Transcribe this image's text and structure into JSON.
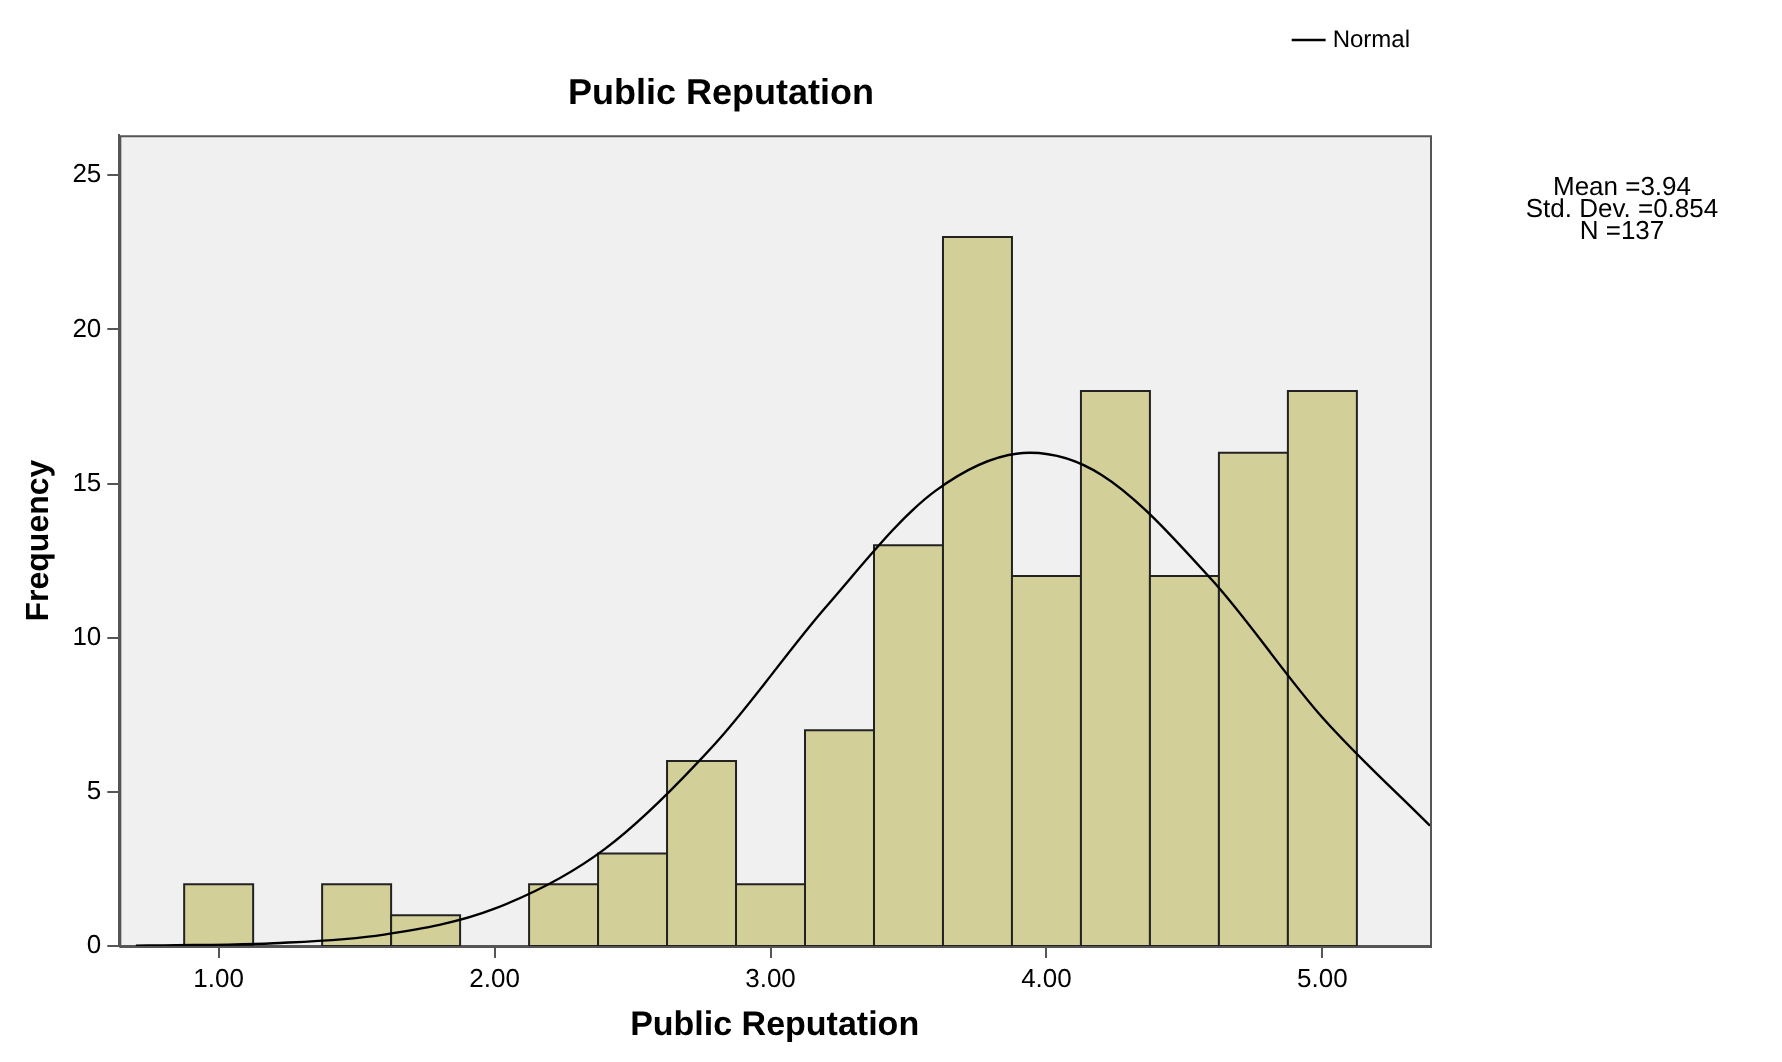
{
  "chart_data": {
    "type": "histogram",
    "title": "Public Reputation",
    "xlabel": "Public Reputation",
    "ylabel": "Frequency",
    "bins": [
      0.875,
      1.125,
      1.375,
      1.625,
      1.875,
      2.125,
      2.375,
      2.625,
      2.875,
      3.125,
      3.375,
      3.625,
      3.875,
      4.125,
      4.375,
      4.625,
      4.875,
      5.125
    ],
    "values": [
      2,
      0,
      2,
      1,
      0,
      2,
      3,
      6,
      2,
      7,
      13,
      23,
      12,
      18,
      12,
      16,
      18
    ],
    "color": "#d3cf98",
    "series": [
      {
        "name": "Normal",
        "type": "line",
        "color": "#000000",
        "x": [
          0.7,
          0.8,
          1.2,
          1.6,
          2.0,
          2.4,
          2.8,
          3.2,
          3.6,
          3.94,
          4.2,
          4.6,
          5.0,
          5.39
        ],
        "values": [
          0.01,
          0.02,
          0.09,
          0.37,
          1.21,
          3.15,
          6.57,
          10.99,
          14.78,
          16.0,
          15.28,
          11.87,
          7.41,
          3.9
        ]
      }
    ],
    "xlim": [
      0.64,
      5.39
    ],
    "xticks": [
      {
        "value": 1,
        "label": "1.00"
      },
      {
        "value": 2,
        "label": "2.00"
      },
      {
        "value": 3,
        "label": "3.00"
      },
      {
        "value": 4,
        "label": "4.00"
      },
      {
        "value": 5,
        "label": "5.00"
      }
    ],
    "ylim": [
      0,
      26.3
    ],
    "yticks": [
      0,
      5,
      10,
      15,
      20,
      25
    ],
    "annotations": [
      "Mean =3.94",
      "Std. Dev. =0.854",
      "N =137"
    ],
    "legend": "top right",
    "grid": false,
    "marker": "none"
  }
}
